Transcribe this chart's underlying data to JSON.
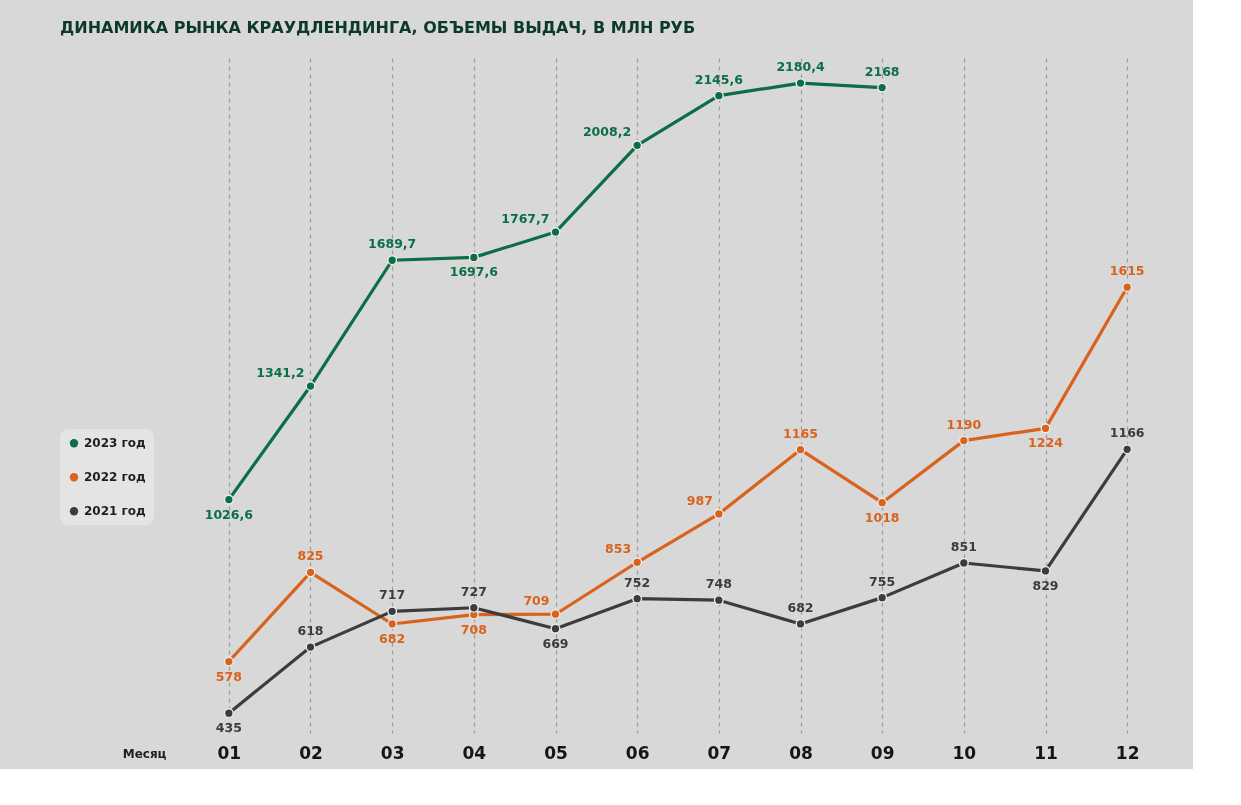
{
  "chart_data": {
    "type": "line",
    "title": "ДИНАМИКА РЫНКА КРАУДЛЕНДИНГА, ОБЪЕМЫ ВЫДАЧ, В МЛН РУБ",
    "xlabel": "Месяц",
    "categories": [
      "01",
      "02",
      "03",
      "04",
      "05",
      "06",
      "07",
      "08",
      "09",
      "10",
      "11",
      "12"
    ],
    "series": [
      {
        "name": "2023 год",
        "color": "#0b6e45",
        "values": [
          1026.6,
          1341.2,
          1689.7,
          1697.6,
          1767.7,
          2008.2,
          2145.6,
          2180.4,
          2168,
          null,
          null,
          null
        ],
        "value_labels": [
          "1026,6",
          "1341,2",
          "1689,7",
          "1697,6",
          "1767,7",
          "2008,2",
          "2145,6",
          "2180,4",
          "2168",
          null,
          null,
          null
        ]
      },
      {
        "name": "2022 год",
        "color": "#d9621c",
        "values": [
          578,
          825,
          682,
          708,
          709,
          853,
          987,
          1165,
          1018,
          1190,
          1224,
          1615
        ],
        "value_labels": [
          "578",
          "825",
          "682",
          "708",
          "709",
          "853",
          "987",
          "1165",
          "1018",
          "1190",
          "1224",
          "1615"
        ]
      },
      {
        "name": "2021 год",
        "color": "#3c3c3c",
        "values": [
          435,
          618,
          717,
          727,
          669,
          752,
          748,
          682,
          755,
          851,
          829,
          1166
        ],
        "value_labels": [
          "435",
          "618",
          "717",
          "727",
          "669",
          "752",
          "748",
          "682",
          "755",
          "851",
          "829",
          "1166"
        ]
      }
    ],
    "ylim": [
      380,
      2250
    ],
    "tick_labels": "x",
    "grid": "x",
    "legend": "left",
    "marker": "circle"
  }
}
